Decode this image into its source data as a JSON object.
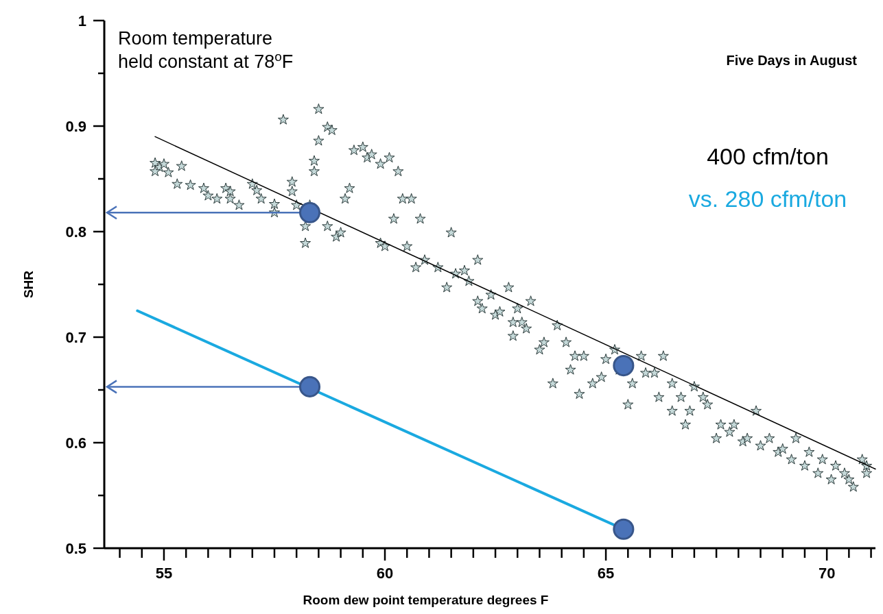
{
  "chart_data": {
    "type": "scatter",
    "title": "Five Days in August",
    "xlabel": "Room dew point temperature degrees F",
    "ylabel": "SHR",
    "annotations": [
      "Room temperature\nheld constant at 78$^{o}$F"
    ],
    "xlim": [
      53.65,
      71.1
    ],
    "ylim": [
      0.5,
      1
    ],
    "xticks": [
      {
        "value": 54,
        "label": null
      },
      {
        "value": 54.5,
        "label": null
      },
      55,
      {
        "value": 55.5,
        "label": null
      },
      {
        "value": 56,
        "label": null
      },
      {
        "value": 56.5,
        "label": null
      },
      {
        "value": 57,
        "label": null
      },
      {
        "value": 57.5,
        "label": null
      },
      {
        "value": 58,
        "label": null
      },
      {
        "value": 58.5,
        "label": null
      },
      {
        "value": 59,
        "label": null
      },
      {
        "value": 59.5,
        "label": null
      },
      60,
      {
        "value": 60.5,
        "label": null
      },
      {
        "value": 61,
        "label": null
      },
      {
        "value": 61.5,
        "label": null
      },
      {
        "value": 62,
        "label": null
      },
      {
        "value": 62.5,
        "label": null
      },
      {
        "value": 63,
        "label": null
      },
      {
        "value": 63.5,
        "label": null
      },
      {
        "value": 64,
        "label": null
      },
      {
        "value": 64.5,
        "label": null
      },
      65,
      {
        "value": 65.5,
        "label": null
      },
      {
        "value": 66,
        "label": null
      },
      {
        "value": 66.5,
        "label": null
      },
      {
        "value": 67,
        "label": null
      },
      {
        "value": 67.5,
        "label": null
      },
      {
        "value": 68,
        "label": null
      },
      {
        "value": 68.5,
        "label": null
      },
      {
        "value": 69,
        "label": null
      },
      {
        "value": 69.5,
        "label": null
      },
      70,
      {
        "value": 70.5,
        "label": null
      },
      {
        "value": 71,
        "label": null
      }
    ],
    "yticks": [
      0.5,
      {
        "value": 0.55,
        "label": null
      },
      0.6,
      {
        "value": 0.65,
        "label": null
      },
      0.7,
      {
        "value": 0.75,
        "label": null
      },
      0.8,
      {
        "value": 0.85,
        "label": null
      },
      0.9,
      {
        "value": 0.95,
        "label": null
      },
      1
    ],
    "grid": false,
    "legend": "top right",
    "series": [
      {
        "marker": "star",
        "color": "#c5d9d9",
        "x": [
          54.8,
          54.9,
          55.0,
          54.8,
          55.1,
          55.4,
          55.3,
          55.6,
          55.9,
          56.0,
          56.2,
          56.4,
          56.5,
          56.5,
          56.7,
          57.0,
          57.1,
          57.2,
          57.5,
          57.5,
          57.7,
          57.9,
          57.9,
          58.0,
          58.2,
          58.2,
          58.3,
          58.4,
          58.4,
          58.5,
          58.5,
          58.7,
          58.8,
          58.7,
          58.9,
          59.0,
          59.1,
          59.2,
          59.3,
          59.5,
          59.6,
          59.7,
          59.9,
          59.9,
          60.1,
          60.0,
          60.2,
          60.3,
          60.4,
          60.5,
          60.6,
          60.7,
          60.8,
          60.9,
          61.2,
          61.4,
          61.5,
          61.6,
          61.8,
          61.9,
          62.1,
          62.1,
          62.2,
          62.4,
          62.5,
          62.6,
          62.8,
          62.9,
          62.9,
          63.0,
          63.1,
          63.2,
          63.3,
          63.5,
          63.6,
          63.8,
          63.9,
          64.1,
          64.2,
          64.3,
          64.4,
          64.5,
          64.7,
          64.9,
          65.0,
          65.2,
          65.3,
          65.5,
          65.6,
          65.8,
          65.9,
          66.1,
          66.2,
          66.3,
          66.5,
          66.5,
          66.7,
          66.8,
          66.9,
          67.0,
          67.2,
          67.3,
          67.5,
          67.6,
          67.8,
          67.9,
          68.1,
          68.2,
          68.4,
          68.5,
          68.7,
          68.9,
          69.0,
          69.2,
          69.3,
          69.5,
          69.6,
          69.8,
          69.9,
          70.1,
          70.2,
          70.4,
          70.5,
          70.6,
          70.8,
          70.9,
          70.9
        ],
        "values": [
          0.865,
          0.861,
          0.864,
          0.857,
          0.856,
          0.862,
          0.845,
          0.844,
          0.841,
          0.834,
          0.831,
          0.841,
          0.838,
          0.831,
          0.825,
          0.845,
          0.839,
          0.831,
          0.826,
          0.818,
          0.906,
          0.847,
          0.838,
          0.825,
          0.789,
          0.805,
          0.825,
          0.857,
          0.867,
          0.916,
          0.886,
          0.899,
          0.896,
          0.805,
          0.795,
          0.799,
          0.831,
          0.841,
          0.877,
          0.88,
          0.87,
          0.873,
          0.864,
          0.789,
          0.87,
          0.786,
          0.812,
          0.857,
          0.831,
          0.786,
          0.831,
          0.766,
          0.812,
          0.773,
          0.766,
          0.747,
          0.799,
          0.76,
          0.763,
          0.753,
          0.734,
          0.773,
          0.727,
          0.74,
          0.721,
          0.724,
          0.747,
          0.714,
          0.701,
          0.727,
          0.714,
          0.708,
          0.734,
          0.688,
          0.695,
          0.656,
          0.711,
          0.695,
          0.669,
          0.682,
          0.646,
          0.682,
          0.656,
          0.662,
          0.679,
          0.688,
          0.669,
          0.636,
          0.656,
          0.682,
          0.666,
          0.666,
          0.643,
          0.682,
          0.63,
          0.656,
          0.643,
          0.617,
          0.63,
          0.653,
          0.643,
          0.636,
          0.604,
          0.617,
          0.61,
          0.617,
          0.601,
          0.604,
          0.63,
          0.597,
          0.604,
          0.591,
          0.594,
          0.584,
          0.604,
          0.578,
          0.591,
          0.571,
          0.584,
          0.565,
          0.578,
          0.571,
          0.565,
          0.558,
          0.584,
          0.571,
          0.578
        ]
      },
      {
        "type": "line",
        "name": "400 cfm/ton",
        "color": "#000000",
        "x": [
          54.8,
          71.1
        ],
        "values": [
          0.89,
          0.575
        ]
      },
      {
        "type": "line",
        "name": "vs. 280 cfm/ton",
        "color": "#1aa9e0",
        "x": [
          54.4,
          65.4
        ],
        "values": [
          0.725,
          0.518
        ]
      },
      {
        "marker": "circle",
        "color": "#4a72b8",
        "x": [
          58.3,
          58.3,
          65.4,
          65.4
        ],
        "values": [
          0.818,
          0.653,
          0.673,
          0.518
        ]
      }
    ]
  }
}
